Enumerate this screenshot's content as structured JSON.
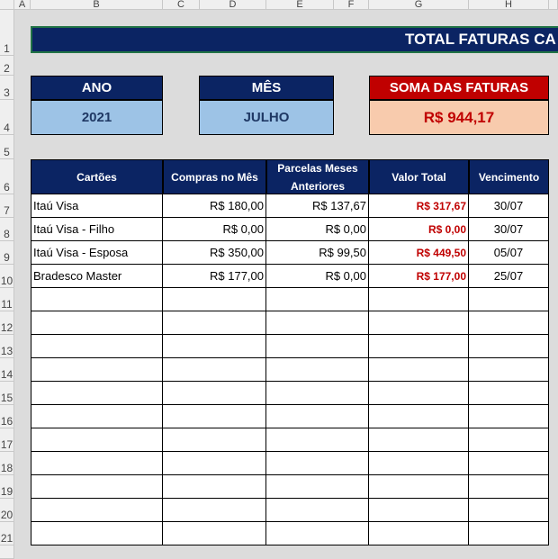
{
  "columns": [
    "A",
    "B",
    "C",
    "D",
    "E",
    "F",
    "G",
    "H"
  ],
  "rows": [
    "1",
    "2",
    "3",
    "4",
    "5",
    "6",
    "7",
    "8",
    "9",
    "10",
    "11",
    "12",
    "13",
    "14",
    "15",
    "16",
    "17",
    "18",
    "19",
    "20",
    "21"
  ],
  "title": "TOTAL FATURAS CA",
  "summary": {
    "year_label": "ANO",
    "year": "2021",
    "month_label": "MÊS",
    "month": "JULHO",
    "sum_label": "SOMA DAS FATURAS",
    "sum": "R$ 944,17"
  },
  "table": {
    "headers": [
      "Cartões",
      "Compras no Mês",
      "Parcelas Meses Anteriores",
      "Valor Total",
      "Vencimento"
    ],
    "rows": [
      [
        "Itaú Visa",
        "R$ 180,00",
        "R$ 137,67",
        "R$ 317,67",
        "30/07"
      ],
      [
        "Itaú Visa - Filho",
        "R$ 0,00",
        "R$ 0,00",
        "R$ 0,00",
        "30/07"
      ],
      [
        "Itaú Visa - Esposa",
        "R$ 350,00",
        "R$ 99,50",
        "R$ 449,50",
        "05/07"
      ],
      [
        "Bradesco Master",
        "R$ 177,00",
        "R$ 0,00",
        "R$ 177,00",
        "25/07"
      ]
    ]
  }
}
